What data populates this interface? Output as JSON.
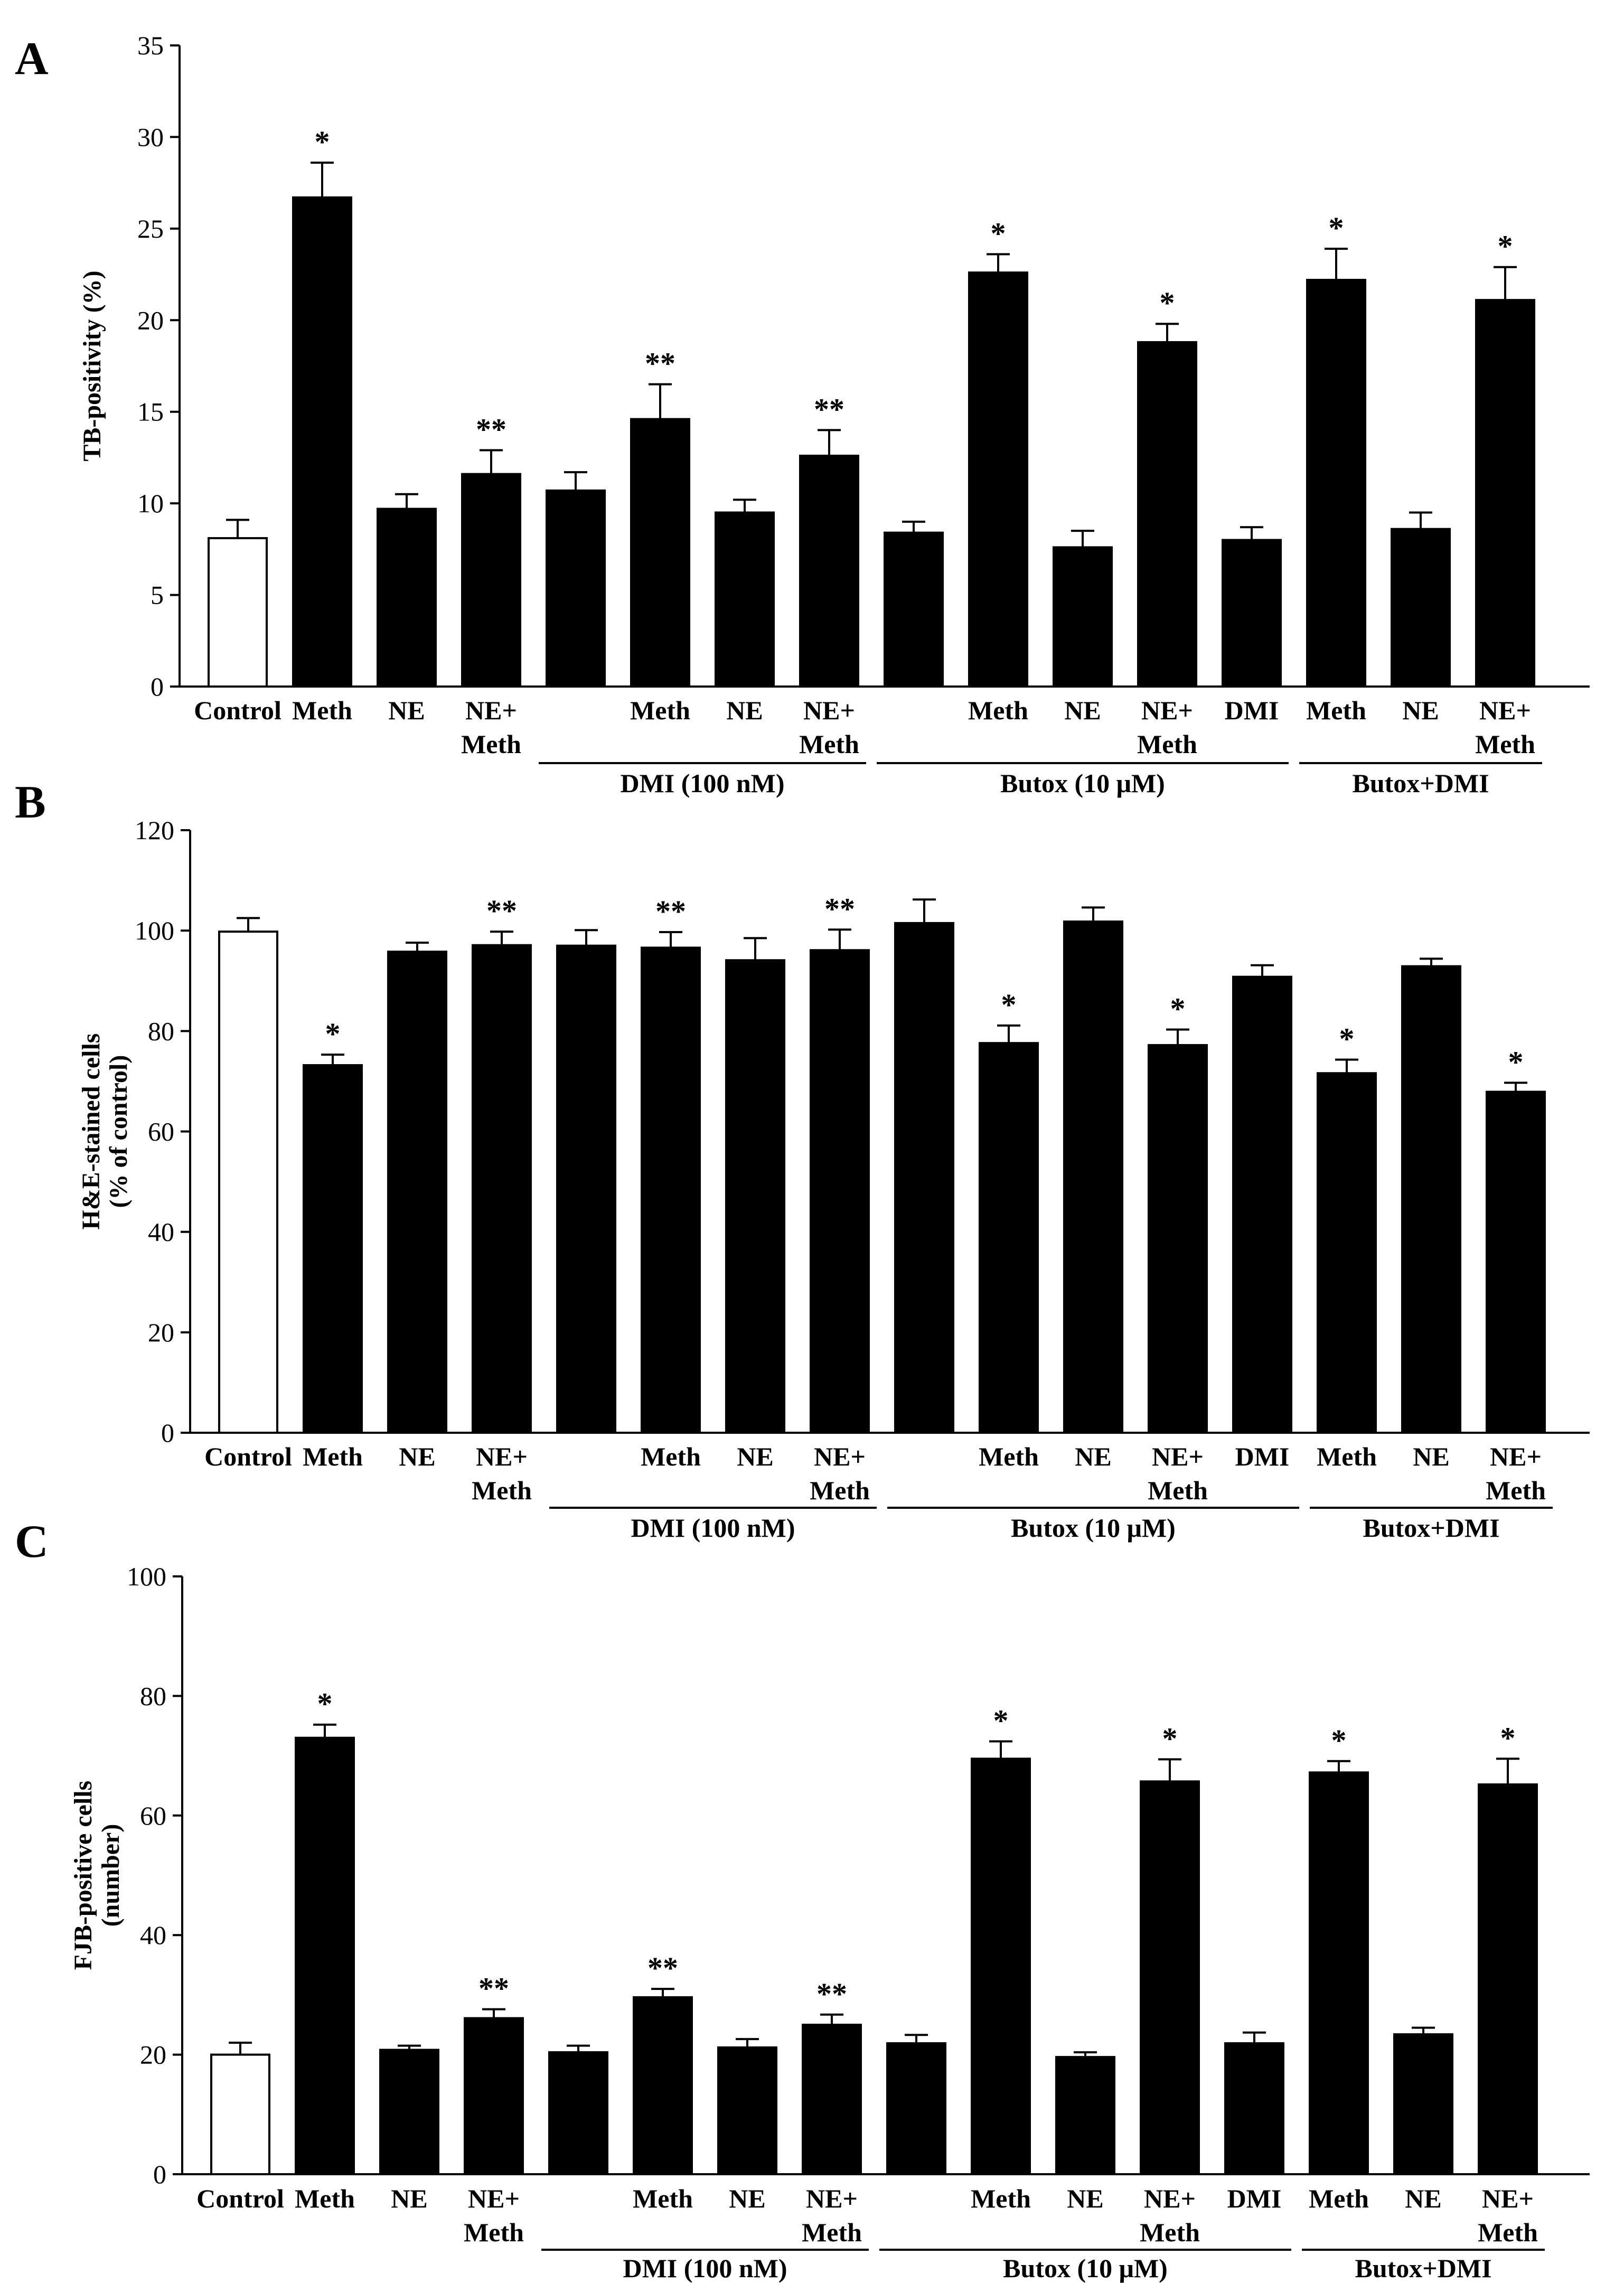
{
  "chart_data": [
    {
      "type": "bar",
      "panel": "A",
      "ylabel": "TB-positivity (%)",
      "ylim": [
        0,
        35
      ],
      "yticks": [
        0,
        5,
        10,
        15,
        20,
        25,
        30,
        35
      ],
      "categories": [
        "Control",
        "Meth",
        "NE",
        "NE+ Meth",
        "",
        "Meth",
        "NE",
        "NE+ Meth",
        "",
        "Meth",
        "NE",
        "NE+ Meth",
        "DMI",
        "Meth",
        "NE",
        "NE+ Meth"
      ],
      "values": [
        8.1,
        26.7,
        9.7,
        11.6,
        10.7,
        14.6,
        9.5,
        12.6,
        8.4,
        22.6,
        7.6,
        18.8,
        8.0,
        22.2,
        8.6,
        21.1
      ],
      "errors": [
        1.0,
        1.9,
        0.8,
        1.3,
        1.0,
        1.9,
        0.7,
        1.4,
        0.6,
        1.0,
        0.9,
        1.0,
        0.7,
        1.7,
        0.9,
        1.8
      ],
      "significance": [
        "",
        "*",
        "",
        "**",
        "",
        "**",
        "",
        "**",
        "",
        "*",
        "",
        "*",
        "",
        "*",
        "",
        "*"
      ],
      "bar_colors": [
        "#ffffff",
        "#000000",
        "#000000",
        "#000000",
        "#000000",
        "#000000",
        "#000000",
        "#000000",
        "#000000",
        "#000000",
        "#000000",
        "#000000",
        "#000000",
        "#000000",
        "#000000",
        "#000000"
      ],
      "groups": [
        {
          "label": "DMI (100 nM)",
          "from": 4,
          "to": 7
        },
        {
          "label": "Butox (10 μM)",
          "from": 8,
          "to": 12
        },
        {
          "label": "Butox+DMI",
          "from": 13,
          "to": 15
        }
      ]
    },
    {
      "type": "bar",
      "panel": "B",
      "ylabel": [
        "H&E-stained cells",
        "(% of control)"
      ],
      "ylim": [
        0,
        120
      ],
      "yticks": [
        0,
        20,
        40,
        60,
        80,
        100,
        120
      ],
      "categories": [
        "Control",
        "Meth",
        "NE",
        "NE+ Meth",
        "",
        "Meth",
        "NE",
        "NE+ Meth",
        "",
        "Meth",
        "NE",
        "NE+ Meth",
        "DMI",
        "Meth",
        "NE",
        "NE+ Meth"
      ],
      "values": [
        99.8,
        73.2,
        95.8,
        97.1,
        97.0,
        96.6,
        94.1,
        96.1,
        101.5,
        77.6,
        101.8,
        77.2,
        90.8,
        71.6,
        92.9,
        67.9
      ],
      "errors": [
        2.7,
        2.1,
        1.8,
        2.7,
        3.1,
        3.1,
        4.4,
        4.1,
        4.7,
        3.5,
        2.8,
        3.1,
        2.3,
        2.7,
        1.5,
        1.8
      ],
      "significance": [
        "",
        "*",
        "",
        "**",
        "",
        "**",
        "",
        "**",
        "",
        "*",
        "",
        "*",
        "",
        "*",
        "",
        "*"
      ],
      "bar_colors": [
        "#ffffff",
        "#000000",
        "#000000",
        "#000000",
        "#000000",
        "#000000",
        "#000000",
        "#000000",
        "#000000",
        "#000000",
        "#000000",
        "#000000",
        "#000000",
        "#000000",
        "#000000",
        "#000000"
      ],
      "groups": [
        {
          "label": "DMI (100 nM)",
          "from": 4,
          "to": 7
        },
        {
          "label": "Butox (10 μM)",
          "from": 8,
          "to": 12
        },
        {
          "label": "Butox+DMI",
          "from": 13,
          "to": 15
        }
      ]
    },
    {
      "type": "bar",
      "panel": "C",
      "ylabel": [
        "FJB-positive cells",
        "(number)"
      ],
      "ylim": [
        0,
        100
      ],
      "yticks": [
        0,
        20,
        40,
        60,
        80,
        100
      ],
      "categories": [
        "Control",
        "Meth",
        "NE",
        "NE+ Meth",
        "",
        "Meth",
        "NE",
        "NE+ Meth",
        "",
        "Meth",
        "NE",
        "NE+ Meth",
        "DMI",
        "Meth",
        "NE",
        "NE+ Meth"
      ],
      "values": [
        20.0,
        73.0,
        20.8,
        26.1,
        20.4,
        29.6,
        21.2,
        25.0,
        21.9,
        69.5,
        19.6,
        65.7,
        21.9,
        67.2,
        23.4,
        65.2
      ],
      "errors": [
        2.0,
        2.2,
        0.7,
        1.5,
        1.1,
        1.4,
        1.4,
        1.7,
        1.4,
        2.9,
        0.8,
        3.7,
        1.8,
        1.9,
        1.1,
        4.3
      ],
      "significance": [
        "",
        "*",
        "",
        "**",
        "",
        "**",
        "",
        "**",
        "",
        "*",
        "",
        "*",
        "",
        "*",
        "",
        "*"
      ],
      "bar_colors": [
        "#ffffff",
        "#000000",
        "#000000",
        "#000000",
        "#000000",
        "#000000",
        "#000000",
        "#000000",
        "#000000",
        "#000000",
        "#000000",
        "#000000",
        "#000000",
        "#000000",
        "#000000",
        "#000000"
      ],
      "groups": [
        {
          "label": "DMI (100 nM)",
          "from": 4,
          "to": 7
        },
        {
          "label": "Butox (10 μM)",
          "from": 8,
          "to": 12
        },
        {
          "label": "Butox+DMI",
          "from": 13,
          "to": 15
        }
      ]
    }
  ]
}
